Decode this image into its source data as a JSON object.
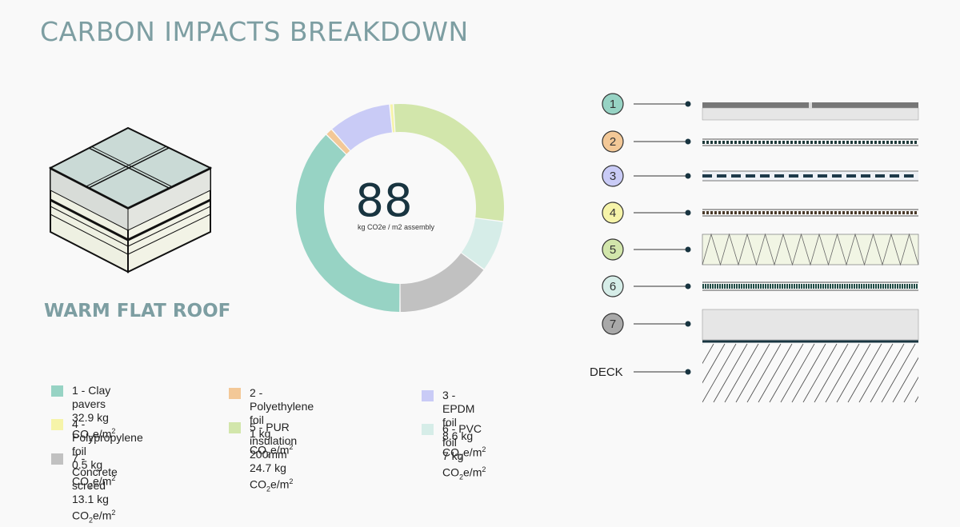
{
  "title": "CARBON IMPACTS BREAKDOWN",
  "subtitle": "WARM FLAT ROOF",
  "deck_label": "DECK",
  "chart_data": {
    "type": "pie",
    "center_value": "88",
    "center_unit": "kg CO2e / m2 assembly",
    "unit": "kg CO2e/m2",
    "series": [
      {
        "name": "1 - Clay pavers",
        "value": 32.9,
        "value_label": "32.9 kg CO",
        "color": "#97d3c4"
      },
      {
        "name": "2 - Polyethylene foil",
        "value": 1,
        "value_label": "1 kg CO",
        "color": "#f3c897"
      },
      {
        "name": "3 - EPDM foil",
        "value": 8.6,
        "value_label": "8.6 kg CO",
        "color": "#c9cbf6"
      },
      {
        "name": "4 - Polypropylene foil",
        "value": 0.5,
        "value_label": "0.5 kg CO",
        "color": "#f6f4a9"
      },
      {
        "name": "5 - PUR insulation 200mm",
        "value": 24.7,
        "value_label": "24.7 kg CO",
        "color": "#d2e6ab"
      },
      {
        "name": "6 - PVC foil",
        "value": 7,
        "value_label": "7 kg CO",
        "color": "#d6ede8"
      },
      {
        "name": "7 - Concrete screed",
        "value": 13.1,
        "value_label": "13.1 kg CO",
        "color": "#c1c1c1"
      }
    ]
  },
  "layers": [
    {
      "num": "1",
      "color": "#97d3c4"
    },
    {
      "num": "2",
      "color": "#f3c897"
    },
    {
      "num": "3",
      "color": "#c9cbf6"
    },
    {
      "num": "4",
      "color": "#f6f4a9"
    },
    {
      "num": "5",
      "color": "#d2e6ab"
    },
    {
      "num": "6",
      "color": "#d6ede8"
    },
    {
      "num": "7",
      "color": "#a9a9a9"
    }
  ]
}
